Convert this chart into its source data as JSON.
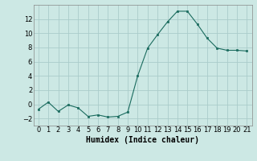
{
  "x": [
    0,
    1,
    2,
    3,
    4,
    5,
    6,
    7,
    8,
    9,
    10,
    11,
    12,
    13,
    14,
    15,
    16,
    17,
    18,
    19,
    20,
    21
  ],
  "y": [
    -0.7,
    0.3,
    -1.0,
    -0.1,
    -0.5,
    -1.7,
    -1.5,
    -1.8,
    -1.7,
    -1.1,
    4.0,
    7.9,
    9.8,
    11.6,
    13.1,
    13.1,
    11.3,
    9.3,
    7.9,
    7.6,
    7.6,
    7.5
  ],
  "line_color": "#1a6b5e",
  "marker": "s",
  "marker_size": 2,
  "bg_color": "#cce8e4",
  "grid_color": "#aaccca",
  "xlabel": "Humidex (Indice chaleur)",
  "xlabel_fontsize": 7,
  "tick_fontsize": 6,
  "ylim": [
    -3,
    14
  ],
  "xlim": [
    -0.5,
    21.5
  ],
  "yticks": [
    -2,
    0,
    2,
    4,
    6,
    8,
    10,
    12
  ],
  "xticks": [
    0,
    1,
    2,
    3,
    4,
    5,
    6,
    7,
    8,
    9,
    10,
    11,
    12,
    13,
    14,
    15,
    16,
    17,
    18,
    19,
    20,
    21
  ]
}
